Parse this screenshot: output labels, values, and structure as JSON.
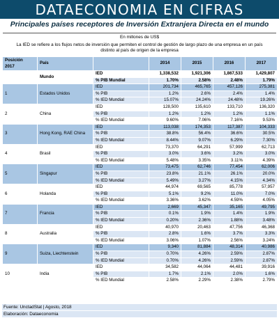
{
  "header": {
    "banner": "DATAECONOMIA EN CIFRAS",
    "title": "Principales países receptores de Inversión Extranjera Directa en el mundo",
    "units": "En millones de US$",
    "note_line1": "La IED se refiere a los flujos netos de inversión que permiten el control de gestión de largo plazo de una empresa en un país",
    "note_line2": "distinto al país de origen de la empresa"
  },
  "table": {
    "col_position_line1": "Posición",
    "col_position_line2": "2017",
    "col_country": "País",
    "years": [
      "2014",
      "2015",
      "2016",
      "2017"
    ],
    "world": {
      "label": "Mundo",
      "rows": [
        {
          "metric": "IED",
          "values": [
            "1,338,532",
            "1,921,306",
            "1,867,533",
            "1,429,807"
          ]
        },
        {
          "metric": "% PIB Mundial",
          "values": [
            "1.70%",
            "2.58%",
            "2.48%",
            "1.79%"
          ]
        }
      ]
    },
    "countries": [
      {
        "pos": "1",
        "name": "Estados Unidos",
        "rows": [
          {
            "metric": "IED",
            "values": [
              "201,734",
              "465,765",
              "457,126",
              "275,381"
            ]
          },
          {
            "metric": "% PIB",
            "values": [
              "1.2%",
              "2.6%",
              "2.4%",
              "1.4%"
            ]
          },
          {
            "metric": "% IED Mundial",
            "values": [
              "15.07%",
              "24.24%",
              "24.48%",
              "19.26%"
            ]
          }
        ]
      },
      {
        "pos": "2",
        "name": "China",
        "rows": [
          {
            "metric": "IED",
            "values": [
              "128,500",
              "135,610",
              "133,710",
              "136,320"
            ]
          },
          {
            "metric": "% PIB",
            "values": [
              "1.2%",
              "1.2%",
              "1.2%",
              "1.1%"
            ]
          },
          {
            "metric": "% IED Mundial",
            "values": [
              "9.60%",
              "7.06%",
              "7.16%",
              "9.53%"
            ]
          }
        ]
      },
      {
        "pos": "3",
        "name": "Hong Kong, RAE China",
        "rows": [
          {
            "metric": "IED",
            "values": [
              "113,038",
              "174,353",
              "117,387",
              "104,333"
            ]
          },
          {
            "metric": "% PIB",
            "values": [
              "38.8%",
              "56.4%",
              "36.6%",
              "30.5%"
            ]
          },
          {
            "metric": "% IED Mundial",
            "values": [
              "8.44%",
              "9.07%",
              "6.29%",
              "7.30%"
            ]
          }
        ]
      },
      {
        "pos": "4",
        "name": "Brasil",
        "rows": [
          {
            "metric": "IED",
            "values": [
              "73,370",
              "64,291",
              "57,999",
              "62,713"
            ]
          },
          {
            "metric": "% PIB",
            "values": [
              "3.0%",
              "3.6%",
              "3.2%",
              "3.0%"
            ]
          },
          {
            "metric": "% IED Mundial",
            "values": [
              "5.48%",
              "3.35%",
              "3.11%",
              "4.39%"
            ]
          }
        ]
      },
      {
        "pos": "5",
        "name": "Singapur",
        "rows": [
          {
            "metric": "IED",
            "values": [
              "73,475",
              "62,746",
              "77,454",
              "62,006"
            ]
          },
          {
            "metric": "% PIB",
            "values": [
              "23.8%",
              "21.1%",
              "26.1%",
              "20.0%"
            ]
          },
          {
            "metric": "% IED Mundial",
            "values": [
              "5.49%",
              "3.27%",
              "4.15%",
              "4.34%"
            ]
          }
        ]
      },
      {
        "pos": "6",
        "name": "Holanda",
        "rows": [
          {
            "metric": "IED",
            "values": [
              "44,974",
              "69,565",
              "85,778",
              "57,957"
            ]
          },
          {
            "metric": "% PIB",
            "values": [
              "5.1%",
              "9.2%",
              "11.0%",
              "7.0%"
            ]
          },
          {
            "metric": "% IED Mundial",
            "values": [
              "3.36%",
              "3.62%",
              "4.59%",
              "4.05%"
            ]
          }
        ]
      },
      {
        "pos": "7",
        "name": "Francia",
        "rows": [
          {
            "metric": "IED",
            "values": [
              "2,669",
              "45,347",
              "35,165",
              "49,795"
            ]
          },
          {
            "metric": "% PIB",
            "values": [
              "0.1%",
              "1.9%",
              "1.4%",
              "1.9%"
            ]
          },
          {
            "metric": "% IED Mundial",
            "values": [
              "0.20%",
              "2.36%",
              "1.88%",
              "3.48%"
            ]
          }
        ]
      },
      {
        "pos": "8",
        "name": "Australia",
        "rows": [
          {
            "metric": "IED",
            "values": [
              "40,970",
              "20,463",
              "47,756",
              "46,368"
            ]
          },
          {
            "metric": "% PIB",
            "values": [
              "2.8%",
              "1.6%",
              "3.7%",
              "3.3%"
            ]
          },
          {
            "metric": "% IED Mundial",
            "values": [
              "3.06%",
              "1.07%",
              "2.56%",
              "3.24%"
            ]
          }
        ]
      },
      {
        "pos": "9",
        "name": "Suiza, Liechtenstein",
        "rows": [
          {
            "metric": "IED",
            "values": [
              "9,340",
              "81,884",
              "48,314",
              "40,986"
            ]
          },
          {
            "metric": "% PIB",
            "values": [
              "0.70%",
              "4.26%",
              "2.59%",
              "2.87%"
            ]
          },
          {
            "metric": "% IED Mundial",
            "values": [
              "0.70%",
              "4.26%",
              "2.59%",
              "2.87%"
            ]
          }
        ]
      },
      {
        "pos": "10",
        "name": "India",
        "rows": [
          {
            "metric": "IED",
            "values": [
              "34,582",
              "44,064",
              "44,481",
              "39,916"
            ]
          },
          {
            "metric": "% PIB",
            "values": [
              "1.7%",
              "2.1%",
              "2.0%",
              "1.6%"
            ]
          },
          {
            "metric": "% IED Mundial",
            "values": [
              "2.58%",
              "2.29%",
              "2.38%",
              "2.79%"
            ]
          }
        ]
      }
    ]
  },
  "footer": {
    "source": "Fuente: UnctadStat | Agosto, 2018",
    "credit": "Elaboración: Dataeconomia"
  },
  "colors": {
    "banner": "#0d4b6b",
    "row_dark": "#a9c6e3",
    "row_light": "#dbe6f4"
  }
}
